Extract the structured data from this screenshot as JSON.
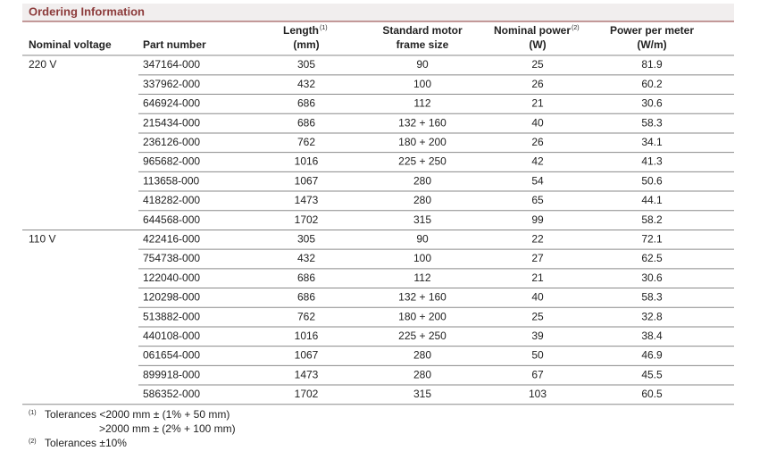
{
  "title": "Ordering Information",
  "table": {
    "header": [
      {
        "lines": [
          "Nominal voltage"
        ]
      },
      {
        "lines": [
          "Part number"
        ]
      },
      {
        "lines": [
          "Length",
          "(mm)"
        ],
        "note": "(1)"
      },
      {
        "lines": [
          "Standard motor",
          "frame size"
        ]
      },
      {
        "lines": [
          "Nominal power",
          "(W)"
        ],
        "note": "(2)"
      },
      {
        "lines": [
          "Power per meter",
          "(W/m)"
        ]
      }
    ],
    "groups": [
      {
        "voltage": "220 V",
        "rows": [
          [
            "347164-000",
            "305",
            "90",
            "25",
            "81.9"
          ],
          [
            "337962-000",
            "432",
            "100",
            "26",
            "60.2"
          ],
          [
            "646924-000",
            "686",
            "112",
            "21",
            "30.6"
          ],
          [
            "215434-000",
            "686",
            "132 + 160",
            "40",
            "58.3"
          ],
          [
            "236126-000",
            "762",
            "180 + 200",
            "26",
            "34.1"
          ],
          [
            "965682-000",
            "1016",
            "225 + 250",
            "42",
            "41.3"
          ],
          [
            "113658-000",
            "1067",
            "280",
            "54",
            "50.6"
          ],
          [
            "418282-000",
            "1473",
            "280",
            "65",
            "44.1"
          ],
          [
            "644568-000",
            "1702",
            "315",
            "99",
            "58.2"
          ]
        ]
      },
      {
        "voltage": "110 V",
        "rows": [
          [
            "422416-000",
            "305",
            "90",
            "22",
            "72.1"
          ],
          [
            "754738-000",
            "432",
            "100",
            "27",
            "62.5"
          ],
          [
            "122040-000",
            "686",
            "112",
            "21",
            "30.6"
          ],
          [
            "120298-000",
            "686",
            "132 + 160",
            "40",
            "58.3"
          ],
          [
            "513882-000",
            "762",
            "180 + 200",
            "25",
            "32.8"
          ],
          [
            "440108-000",
            "1016",
            "225 + 250",
            "39",
            "38.4"
          ],
          [
            "061654-000",
            "1067",
            "280",
            "50",
            "46.9"
          ],
          [
            "899918-000",
            "1473",
            "280",
            "67",
            "45.5"
          ],
          [
            "586352-000",
            "1702",
            "315",
            "103",
            "60.5"
          ]
        ]
      }
    ]
  },
  "footnotes": [
    {
      "mark": "(1)",
      "lines": [
        "Tolerances  <2000 mm ± (1% + 50 mm)",
        ">2000 mm ± (2% + 100 mm)"
      ]
    },
    {
      "mark": "(2)",
      "lines": [
        "Tolerances ±10%"
      ]
    }
  ]
}
